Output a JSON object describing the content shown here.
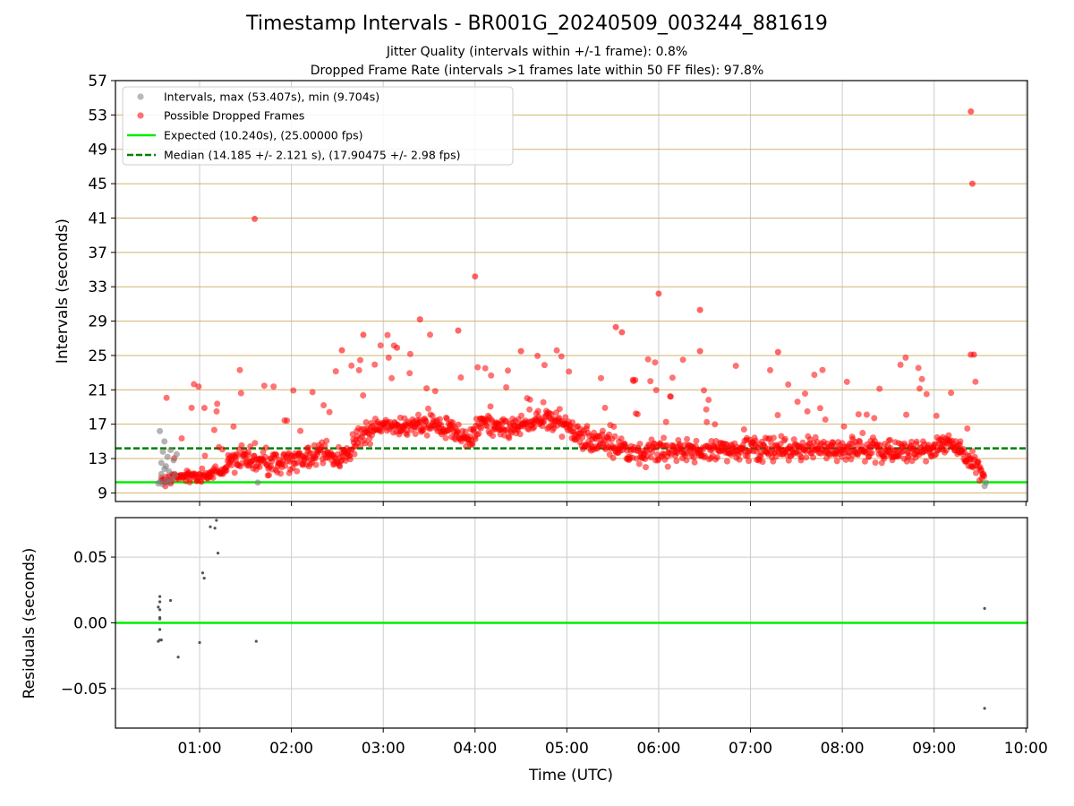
{
  "chart_data": [
    {
      "type": "scatter",
      "title": "Timestamp Intervals - BR001G_20240509_003244_881619",
      "subtitles": [
        "Jitter Quality (intervals within +/-1 frame): 0.8%",
        "Dropped Frame Rate (intervals >1 frames late within 50 FF files): 97.8%"
      ],
      "xlabel": "",
      "ylabel": "Intervals (seconds)",
      "xlim": [
        "00:05",
        "10:01"
      ],
      "ylim": [
        8,
        57
      ],
      "yticks": [
        9,
        13,
        17,
        21,
        25,
        29,
        33,
        37,
        41,
        45,
        49,
        53,
        57
      ],
      "grid": true,
      "legend_position": "top-left",
      "legend": {
        "intervals": "Intervals, max (53.407s), min (9.704s)",
        "dropped": "Possible Dropped Frames",
        "expected": "Expected (10.240s), (25.00000 fps)",
        "median": "Median (14.185 +/- 2.121 s), (17.90475 +/- 2.98 fps)"
      },
      "colors": {
        "intervals": "#808080",
        "dropped": "#ff0000",
        "expected": "#00ee00",
        "median": "#008000",
        "hgrid": "#d2b46e",
        "vgrid": "#cccccc"
      },
      "expected_line": 10.24,
      "median_line": 14.185,
      "trend": [
        [
          "00:35",
          10.4
        ],
        [
          "00:45",
          10.8
        ],
        [
          "01:00",
          11.0
        ],
        [
          "01:15",
          11.5
        ],
        [
          "01:25",
          13.2
        ],
        [
          "01:40",
          12.8
        ],
        [
          "01:55",
          12.4
        ],
        [
          "02:10",
          13.0
        ],
        [
          "02:20",
          14.0
        ],
        [
          "02:30",
          12.8
        ],
        [
          "02:38",
          13.5
        ],
        [
          "02:45",
          16.0
        ],
        [
          "03:00",
          16.5
        ],
        [
          "03:20",
          16.8
        ],
        [
          "03:40",
          16.8
        ],
        [
          "03:55",
          15.0
        ],
        [
          "04:05",
          17.2
        ],
        [
          "04:20",
          16.5
        ],
        [
          "04:40",
          17.5
        ],
        [
          "04:55",
          17.3
        ],
        [
          "05:10",
          15.5
        ],
        [
          "05:25",
          14.5
        ],
        [
          "05:45",
          13.8
        ],
        [
          "06:10",
          13.8
        ],
        [
          "06:30",
          14.0
        ],
        [
          "07:00",
          14.2
        ],
        [
          "07:30",
          14.0
        ],
        [
          "08:00",
          14.0
        ],
        [
          "08:30",
          13.9
        ],
        [
          "09:00",
          14.1
        ],
        [
          "09:10",
          15.0
        ],
        [
          "09:20",
          13.5
        ],
        [
          "09:30",
          12.0
        ],
        [
          "09:33",
          10.2
        ]
      ],
      "grey_cluster": [
        [
          "00:33",
          10.1
        ],
        [
          "00:34",
          10.3
        ],
        [
          "00:34",
          16.2
        ],
        [
          "00:35",
          11.2
        ],
        [
          "00:35",
          12.5
        ],
        [
          "00:36",
          10.0
        ],
        [
          "00:36",
          13.8
        ],
        [
          "00:37",
          11.8
        ],
        [
          "00:37",
          15.0
        ],
        [
          "00:38",
          10.5
        ],
        [
          "00:38",
          12.1
        ],
        [
          "00:39",
          13.2
        ],
        [
          "00:40",
          10.2
        ],
        [
          "00:40",
          11.5
        ],
        [
          "00:41",
          14.0
        ],
        [
          "00:42",
          10.6
        ],
        [
          "00:43",
          12.8
        ],
        [
          "00:44",
          11.1
        ],
        [
          "00:45",
          13.5
        ],
        [
          "01:38",
          10.2
        ],
        [
          "09:33",
          9.8
        ],
        [
          "09:34",
          10.2
        ]
      ],
      "outliers": [
        [
          "01:36",
          40.9
        ],
        [
          "03:24",
          29.2
        ],
        [
          "04:00",
          34.2
        ],
        [
          "05:32",
          28.3
        ],
        [
          "05:36",
          27.7
        ],
        [
          "06:00",
          32.2
        ],
        [
          "06:27",
          30.3
        ],
        [
          "09:24",
          53.4
        ],
        [
          "09:25",
          45.0
        ],
        [
          "09:24",
          25.1
        ],
        [
          "09:26",
          25.1
        ],
        [
          "02:47",
          27.4
        ],
        [
          "03:49",
          27.9
        ],
        [
          "02:33",
          25.6
        ],
        [
          "03:09",
          25.9
        ],
        [
          "04:30",
          25.5
        ],
        [
          "07:18",
          25.4
        ],
        [
          "06:27",
          25.5
        ]
      ]
    },
    {
      "type": "scatter",
      "xlabel": "Time (UTC)",
      "ylabel": "Residuals (seconds)",
      "xlim": [
        "00:05",
        "10:01"
      ],
      "ylim": [
        -0.08,
        0.08
      ],
      "yticks": [
        -0.05,
        0.0,
        0.05
      ],
      "ytick_labels": [
        "−0.05",
        "0.00",
        "0.05"
      ],
      "xticks": [
        "01:00",
        "02:00",
        "03:00",
        "04:00",
        "05:00",
        "06:00",
        "07:00",
        "08:00",
        "09:00",
        "10:00"
      ],
      "grid": true,
      "zero_line_color": "#00ee00",
      "points": [
        [
          "00:34",
          0.02
        ],
        [
          "00:34",
          0.016
        ],
        [
          "00:33",
          0.012
        ],
        [
          "00:34",
          0.01
        ],
        [
          "00:34",
          0.004
        ],
        [
          "00:34",
          0.003
        ],
        [
          "00:34",
          -0.005
        ],
        [
          "00:34",
          -0.013
        ],
        [
          "00:33",
          -0.014
        ],
        [
          "00:35",
          -0.013
        ],
        [
          "00:41",
          0.017
        ],
        [
          "00:46",
          -0.026
        ],
        [
          "01:00",
          -0.015
        ],
        [
          "01:02",
          0.038
        ],
        [
          "01:03",
          0.034
        ],
        [
          "01:07",
          0.073
        ],
        [
          "01:10",
          0.072
        ],
        [
          "01:11",
          0.078
        ],
        [
          "01:12",
          0.053
        ],
        [
          "01:37",
          -0.014
        ],
        [
          "09:33",
          0.011
        ],
        [
          "09:33",
          -0.065
        ]
      ]
    }
  ]
}
